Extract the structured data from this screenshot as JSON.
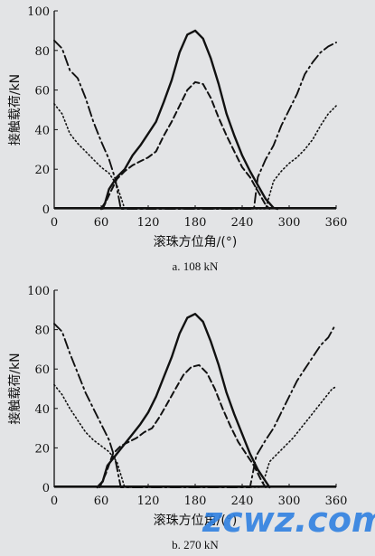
{
  "chart_data": [
    {
      "type": "line",
      "caption": "a. 108 kN",
      "xlabel": "滚珠方位角/(°)",
      "ylabel": "接触载荷/kN",
      "xlim": [
        0,
        360
      ],
      "ylim": [
        0,
        100
      ],
      "xticks": [
        0,
        60,
        120,
        180,
        240,
        300,
        360
      ],
      "yticks": [
        0,
        20,
        40,
        60,
        80,
        100
      ],
      "grid": false,
      "series": [
        {
          "style": "solid",
          "x": [
            60,
            65,
            70,
            80,
            90,
            100,
            110,
            120,
            130,
            140,
            150,
            160,
            170,
            180,
            190,
            200,
            210,
            220,
            230,
            240,
            250,
            260,
            270,
            280,
            285
          ],
          "y": [
            0,
            3,
            10,
            16,
            20,
            27,
            32,
            38,
            44,
            54,
            65,
            79,
            88,
            90,
            86,
            76,
            63,
            48,
            37,
            27,
            19,
            12,
            5,
            0.5,
            0
          ]
        },
        {
          "style": "dashed",
          "x": [
            62,
            70,
            80,
            90,
            100,
            110,
            120,
            130,
            140,
            150,
            160,
            170,
            180,
            190,
            200,
            210,
            220,
            230,
            240,
            250,
            260,
            270,
            275
          ],
          "y": [
            0,
            7,
            15,
            19,
            22,
            24,
            26,
            29,
            37,
            44,
            52,
            60,
            64,
            63,
            56,
            46,
            37,
            29,
            21,
            16,
            9,
            2,
            0
          ]
        },
        {
          "style": "dash-dot",
          "x": [
            0,
            10,
            20,
            30,
            40,
            50,
            60,
            70,
            78,
            85,
            255,
            260,
            270,
            280,
            290,
            300,
            310,
            320,
            330,
            340,
            350,
            360
          ],
          "y": [
            85,
            81,
            70,
            66,
            56,
            44,
            34,
            25,
            15,
            0,
            0,
            16,
            25,
            32,
            42,
            50,
            58,
            68,
            74,
            79,
            82,
            84
          ]
        },
        {
          "style": "dotted",
          "x": [
            0,
            10,
            20,
            30,
            40,
            50,
            60,
            70,
            80,
            90,
            270,
            280,
            290,
            300,
            310,
            320,
            330,
            340,
            350,
            360
          ],
          "y": [
            53,
            48,
            38,
            33,
            29,
            25,
            21,
            18,
            12,
            0,
            0,
            14,
            19,
            23,
            26,
            30,
            35,
            42,
            48,
            52
          ]
        }
      ]
    },
    {
      "type": "line",
      "caption": "b. 270 kN",
      "xlabel": "滚珠方位角/(°)",
      "ylabel": "接触载荷/kN",
      "xlim": [
        0,
        360
      ],
      "ylim": [
        0,
        100
      ],
      "xticks": [
        0,
        60,
        120,
        180,
        240,
        300,
        360
      ],
      "yticks": [
        0,
        20,
        40,
        60,
        80,
        100
      ],
      "grid": false,
      "series": [
        {
          "style": "solid",
          "x": [
            55,
            62,
            68,
            78,
            90,
            100,
            110,
            120,
            130,
            140,
            150,
            160,
            170,
            180,
            190,
            200,
            210,
            220,
            230,
            240,
            250,
            260,
            270,
            275
          ],
          "y": [
            0,
            3,
            11,
            16,
            22,
            27,
            32,
            38,
            46,
            56,
            66,
            78,
            86,
            88,
            84,
            74,
            62,
            48,
            37,
            27,
            17,
            9,
            3,
            0
          ]
        },
        {
          "style": "dashed",
          "x": [
            58,
            66,
            75,
            85,
            95,
            105,
            115,
            125,
            135,
            145,
            155,
            165,
            175,
            185,
            195,
            205,
            215,
            225,
            235,
            245,
            255,
            265,
            270
          ],
          "y": [
            0,
            7,
            17,
            21,
            23,
            25,
            28,
            30,
            36,
            43,
            50,
            57,
            61,
            62,
            58,
            50,
            40,
            31,
            23,
            17,
            11,
            3,
            0
          ]
        },
        {
          "style": "dash-dot",
          "x": [
            0,
            10,
            20,
            30,
            40,
            50,
            60,
            70,
            78,
            85,
            250,
            258,
            270,
            280,
            290,
            300,
            310,
            320,
            330,
            340,
            350,
            357
          ],
          "y": [
            83,
            79,
            68,
            58,
            48,
            40,
            32,
            24,
            14,
            0,
            0,
            16,
            24,
            30,
            38,
            46,
            54,
            60,
            66,
            72,
            76,
            81
          ]
        },
        {
          "style": "dotted",
          "x": [
            0,
            10,
            20,
            30,
            40,
            50,
            60,
            70,
            80,
            90,
            265,
            275,
            285,
            295,
            305,
            315,
            325,
            335,
            345,
            355,
            360
          ],
          "y": [
            52,
            47,
            40,
            34,
            28,
            24,
            21,
            18,
            13,
            0,
            0,
            13,
            17,
            21,
            25,
            30,
            35,
            40,
            45,
            50,
            51
          ]
        }
      ]
    }
  ],
  "watermark": "zcwz.com"
}
